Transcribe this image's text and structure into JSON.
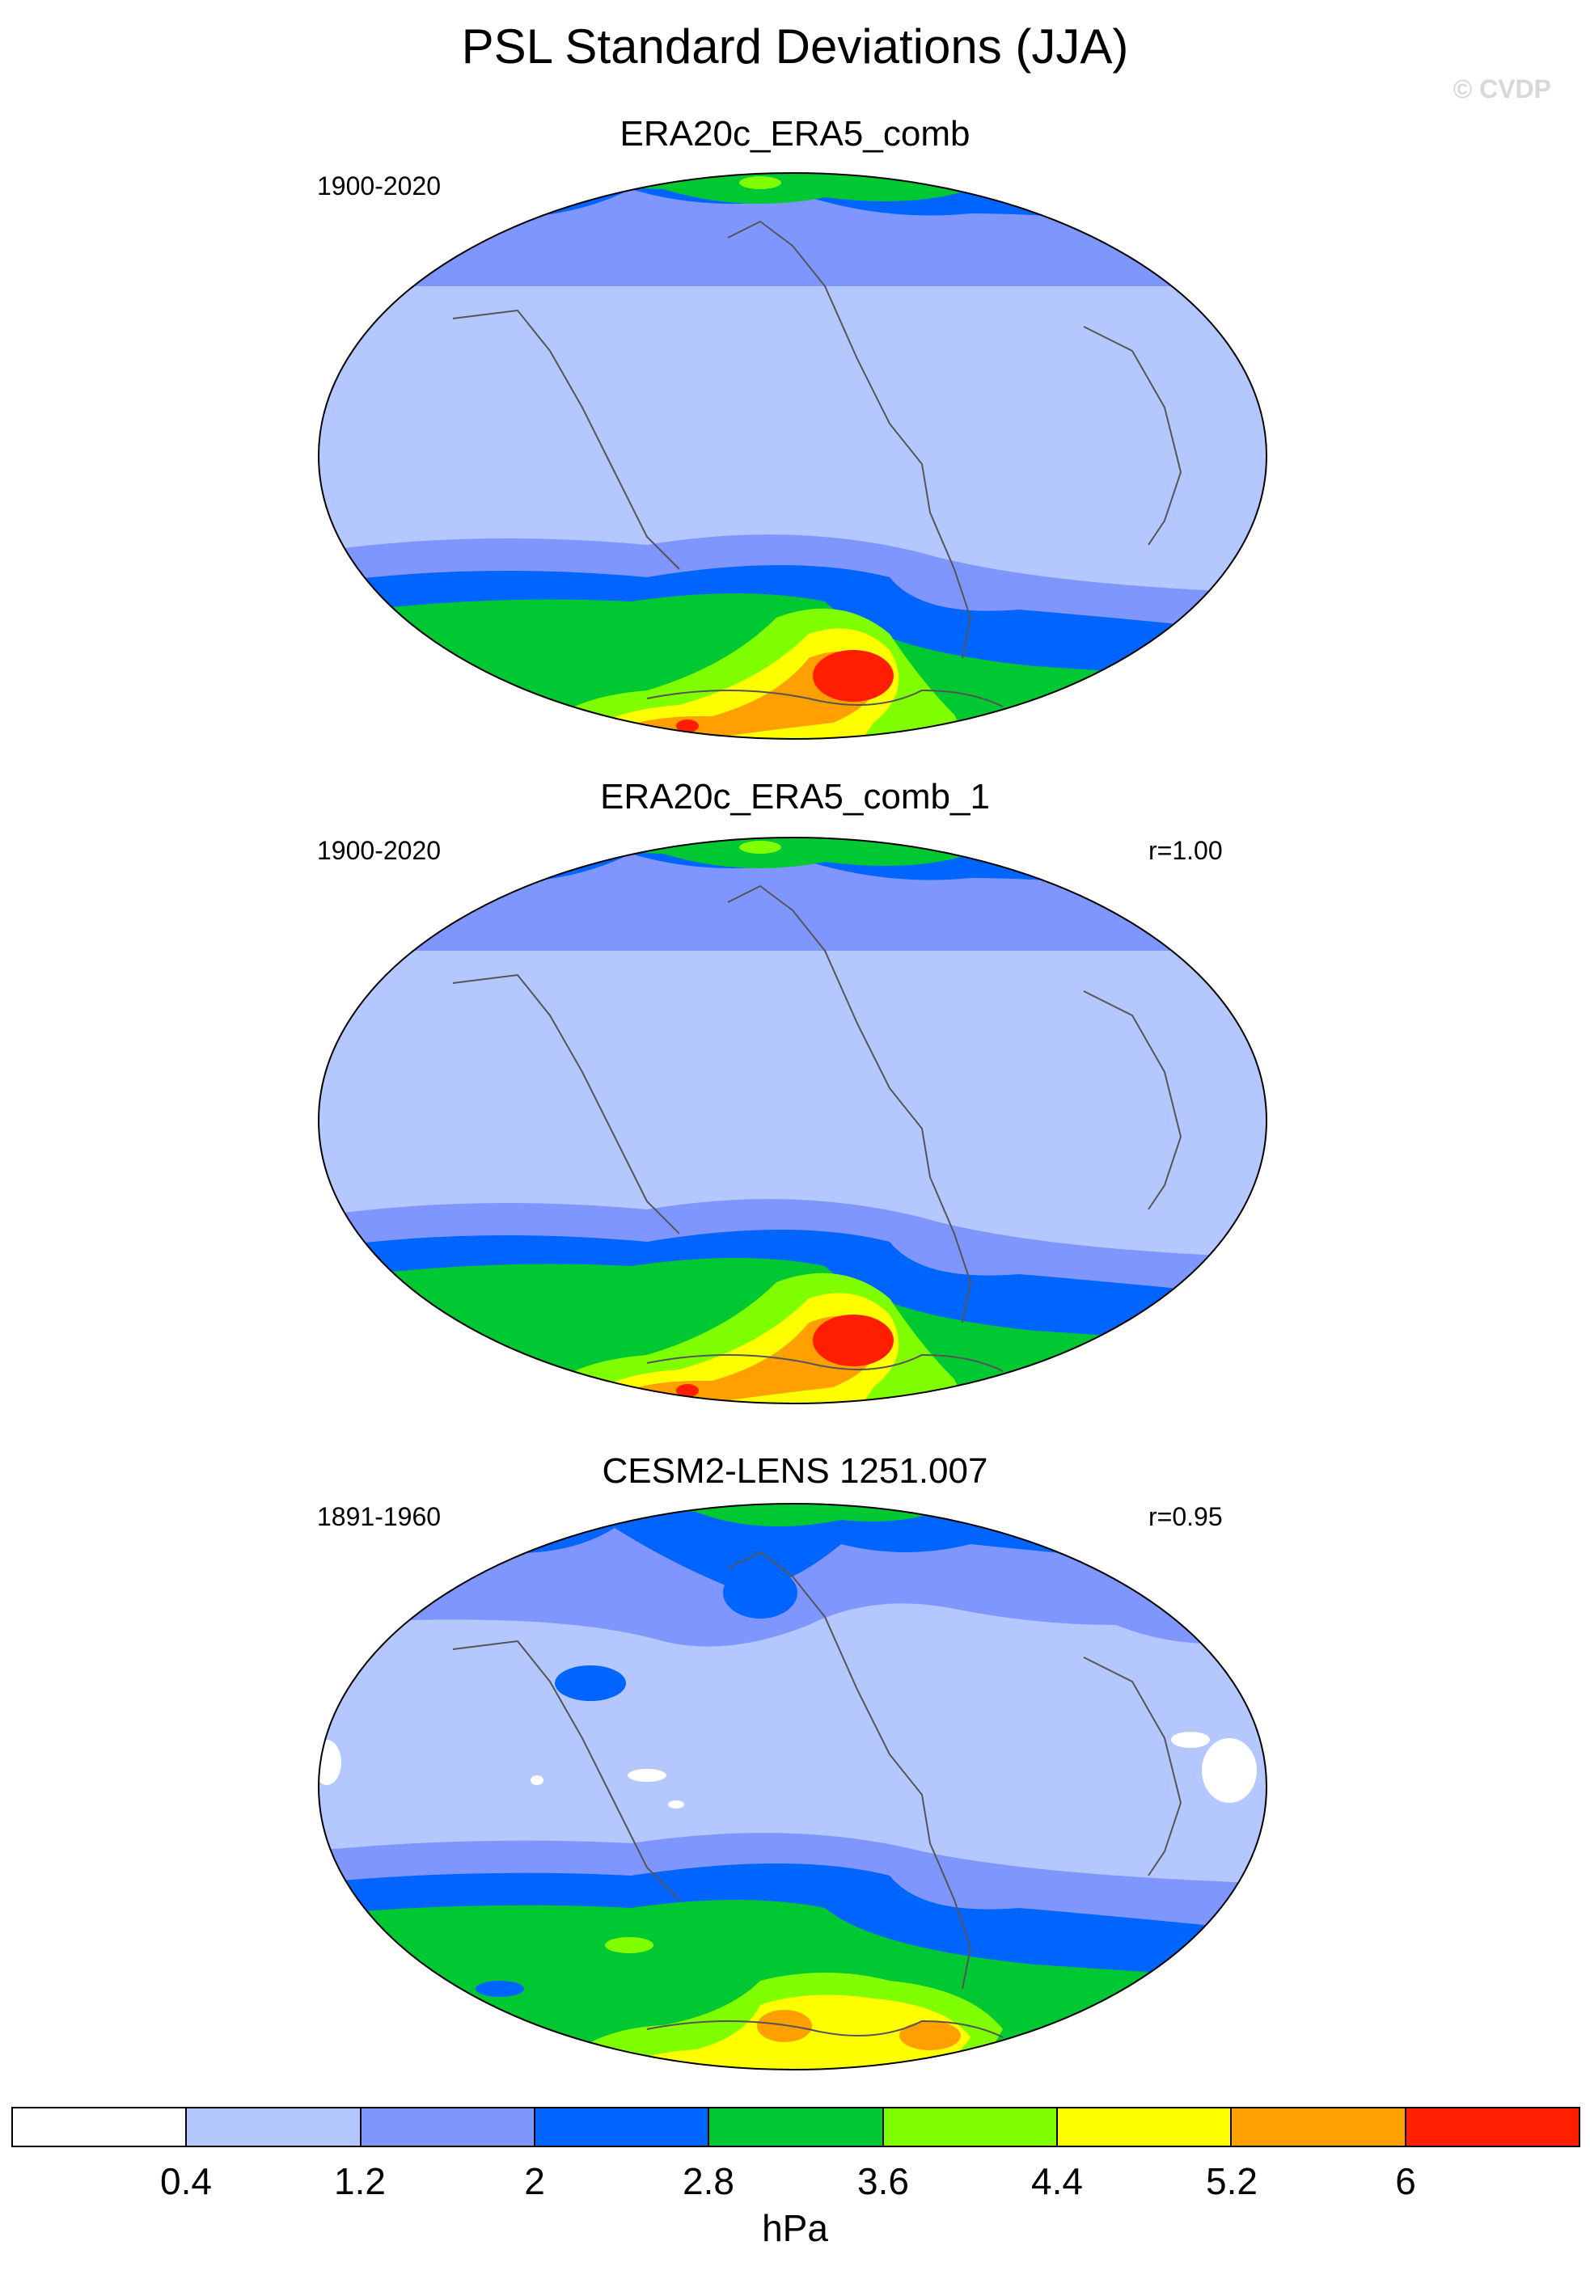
{
  "title": "PSL Standard Deviations (JJA)",
  "watermark": "© CVDP",
  "panels": [
    {
      "title": "ERA20c_ERA5_comb",
      "period": "1900-2020",
      "correlation": ""
    },
    {
      "title": "ERA20c_ERA5_comb_1",
      "period": "1900-2020",
      "correlation": "r=1.00"
    },
    {
      "title": "CESM2-LENS 1251.007",
      "period": "1891-1960",
      "correlation": "r=0.95"
    }
  ],
  "colorbar": {
    "colors": [
      "#ffffff",
      "#b4c8ff",
      "#7f96ff",
      "#0064ff",
      "#00c832",
      "#80ff00",
      "#ffff00",
      "#ffa000",
      "#ff1e00"
    ],
    "tick_labels": [
      "0.4",
      "1.2",
      "2",
      "2.8",
      "3.6",
      "4.4",
      "5.2",
      "6"
    ],
    "unit": "hPa"
  }
}
